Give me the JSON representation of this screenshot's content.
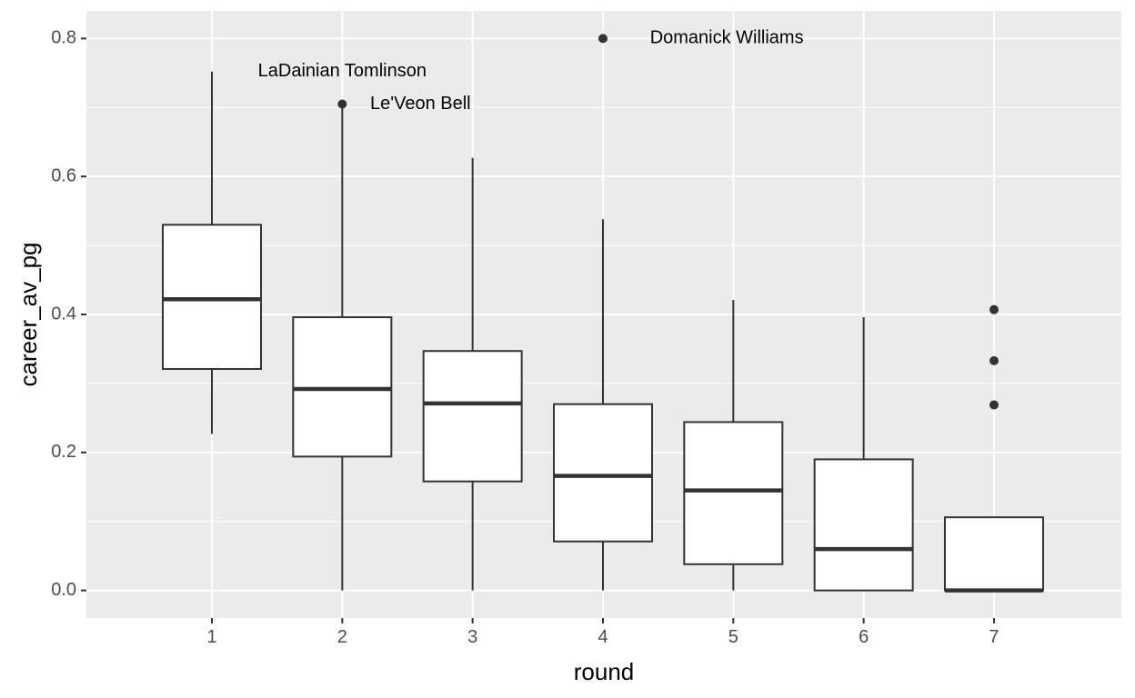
{
  "chart_data": {
    "type": "boxplot",
    "xlabel": "round",
    "ylabel": "career_av_pg",
    "categories": [
      "1",
      "2",
      "3",
      "4",
      "5",
      "6",
      "7"
    ],
    "ylim": [
      -0.04,
      0.84
    ],
    "y_ticks": [
      0.0,
      0.2,
      0.4,
      0.6,
      0.8
    ],
    "y_tick_labels": [
      "0.0",
      "0.2",
      "0.4",
      "0.6",
      "0.8"
    ],
    "grid": true,
    "boxes": [
      {
        "category": "1",
        "whisker_low": 0.227,
        "q1": 0.321,
        "median": 0.422,
        "q3": 0.53,
        "whisker_high": 0.752,
        "outliers": []
      },
      {
        "category": "2",
        "whisker_low": 0.0,
        "q1": 0.194,
        "median": 0.292,
        "q3": 0.396,
        "whisker_high": 0.7,
        "outliers": [
          0.705
        ]
      },
      {
        "category": "3",
        "whisker_low": 0.0,
        "q1": 0.158,
        "median": 0.271,
        "q3": 0.347,
        "whisker_high": 0.627,
        "outliers": []
      },
      {
        "category": "4",
        "whisker_low": 0.0,
        "q1": 0.071,
        "median": 0.166,
        "q3": 0.27,
        "whisker_high": 0.538,
        "outliers": [
          0.8
        ]
      },
      {
        "category": "5",
        "whisker_low": 0.0,
        "q1": 0.038,
        "median": 0.145,
        "q3": 0.244,
        "whisker_high": 0.421,
        "outliers": []
      },
      {
        "category": "6",
        "whisker_low": 0.0,
        "q1": 0.0,
        "median": 0.06,
        "q3": 0.19,
        "whisker_high": 0.396,
        "outliers": []
      },
      {
        "category": "7",
        "whisker_low": 0.0,
        "q1": 0.0,
        "median": 0.0,
        "q3": 0.106,
        "whisker_high": 0.106,
        "outliers": [
          0.269,
          0.333,
          0.407
        ]
      }
    ],
    "annotations": [
      {
        "text": "LaDainian Tomlinson",
        "x": 2,
        "y": 0.752
      },
      {
        "text": "Le'Veon Bell",
        "x": 2.6,
        "y": 0.705
      },
      {
        "text": "Domanick Williams",
        "x": 4.95,
        "y": 0.8
      }
    ],
    "colors": {
      "panel_background": "#ebebeb",
      "grid_major": "#ffffff",
      "box_fill": "#ffffff",
      "box_stroke": "#333333",
      "point": "#333333"
    }
  }
}
